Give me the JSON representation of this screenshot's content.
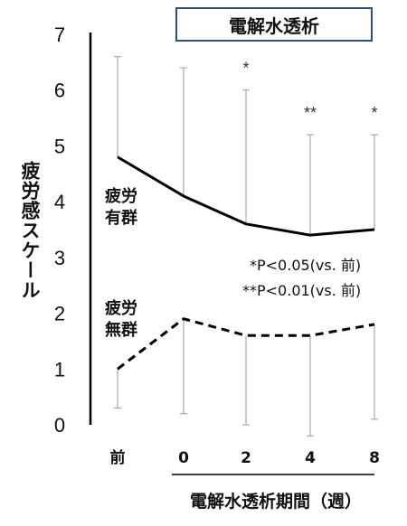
{
  "chart_data": {
    "type": "line",
    "title": "電解水透析",
    "ylabel": "疲労感スケール",
    "xlabel": "電解水透析期間（週）",
    "categories": [
      "前",
      "0",
      "2",
      "4",
      "8"
    ],
    "ylim": [
      0,
      7
    ],
    "yticks": [
      "0",
      "1",
      "2",
      "3",
      "4",
      "5",
      "6",
      "7"
    ],
    "series": [
      {
        "name": "疲労有群",
        "label_lines": [
          "疲労",
          "有群"
        ],
        "style": "solid",
        "values": [
          4.8,
          4.1,
          3.6,
          3.4,
          3.5
        ],
        "error_upper": [
          6.6,
          6.4,
          6.0,
          5.2,
          5.2
        ]
      },
      {
        "name": "疲労無群",
        "label_lines": [
          "疲労",
          "無群"
        ],
        "style": "dashed",
        "values": [
          1.0,
          1.9,
          1.6,
          1.6,
          1.8
        ],
        "error_lower": [
          0.3,
          0.2,
          0.0,
          -0.2,
          0.1
        ]
      }
    ],
    "significance_marks": [
      "",
      "",
      "*",
      "**",
      "*"
    ],
    "annotations": [
      "*P<0.05(vs. 前)",
      "**P<0.01(vs. 前)"
    ]
  },
  "colors": {
    "line": "#000000",
    "error_bar": "#9a9a9a",
    "title_border": "#2e4e7a"
  }
}
